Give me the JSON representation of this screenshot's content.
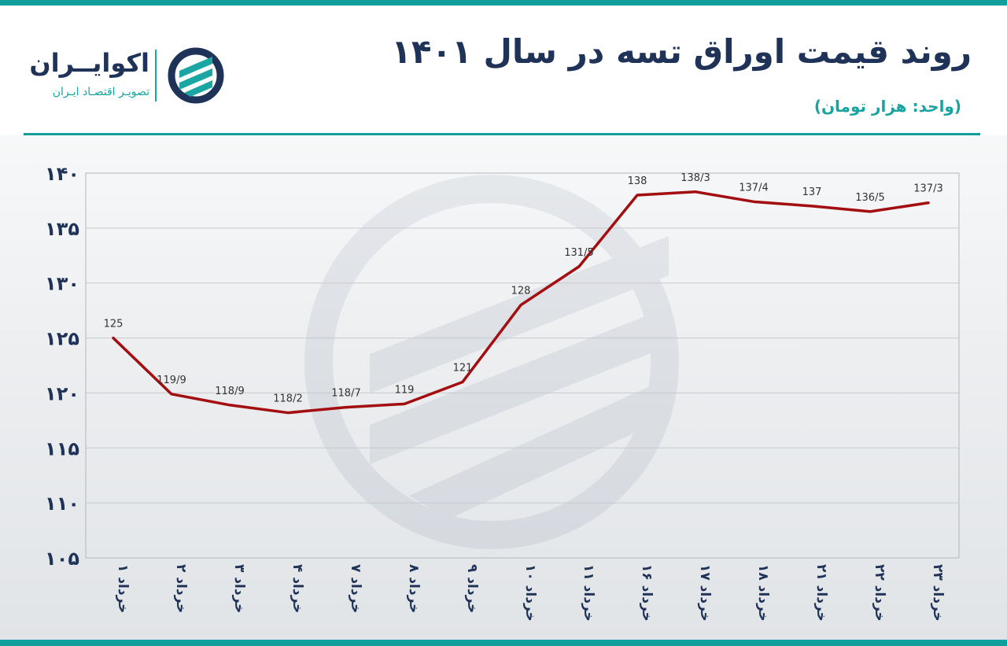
{
  "header": {
    "title": "روند قیمت اوراق تسه در سال ۱۴۰۱",
    "unit": "(واحد: هزار تومان)"
  },
  "logo": {
    "name": "اکوایــران",
    "subtitle": "تصویـر اقتصـاد ایـران",
    "icon": "ecoiran-logo-icon"
  },
  "colors": {
    "accent": "#129e9a",
    "title": "#1f3258",
    "line": "#a30e10",
    "grid": "#c7cacd"
  },
  "chart_data": {
    "type": "line",
    "title": "روند قیمت اوراق تسه در سال ۱۴۰۱",
    "ylabel": "(واحد: هزار تومان)",
    "xlabel": "",
    "ylim": [
      105,
      140
    ],
    "yticks": [
      105,
      110,
      115,
      120,
      125,
      130,
      135,
      140
    ],
    "ytick_labels": [
      "۱۰۵",
      "۱۱۰",
      "۱۱۵",
      "۱۲۰",
      "۱۲۵",
      "۱۳۰",
      "۱۳۵",
      "۱۴۰"
    ],
    "grid": true,
    "categories": [
      "۱ خرداد",
      "۲ خرداد",
      "۳ خرداد",
      "۴ خرداد",
      "۷ خرداد",
      "۸ خرداد",
      "۹ خرداد",
      "۱۰ خرداد",
      "۱۱ خرداد",
      "۱۶ خرداد",
      "۱۷ خرداد",
      "۱۸ خرداد",
      "۲۱ خرداد",
      "۲۲ خرداد",
      "۲۳ خرداد"
    ],
    "series": [
      {
        "name": "قیمت اوراق تسه",
        "values": [
          125,
          119.9,
          118.9,
          118.2,
          118.7,
          119,
          121,
          128,
          131.5,
          138,
          138.3,
          137.4,
          137,
          136.5,
          137.3
        ],
        "labels": [
          "125",
          "119/9",
          "118/9",
          "118/2",
          "118/7",
          "119",
          "121",
          "128",
          "131/5",
          "138",
          "138/3",
          "137/4",
          "137",
          "136/5",
          "137/3"
        ]
      }
    ]
  }
}
